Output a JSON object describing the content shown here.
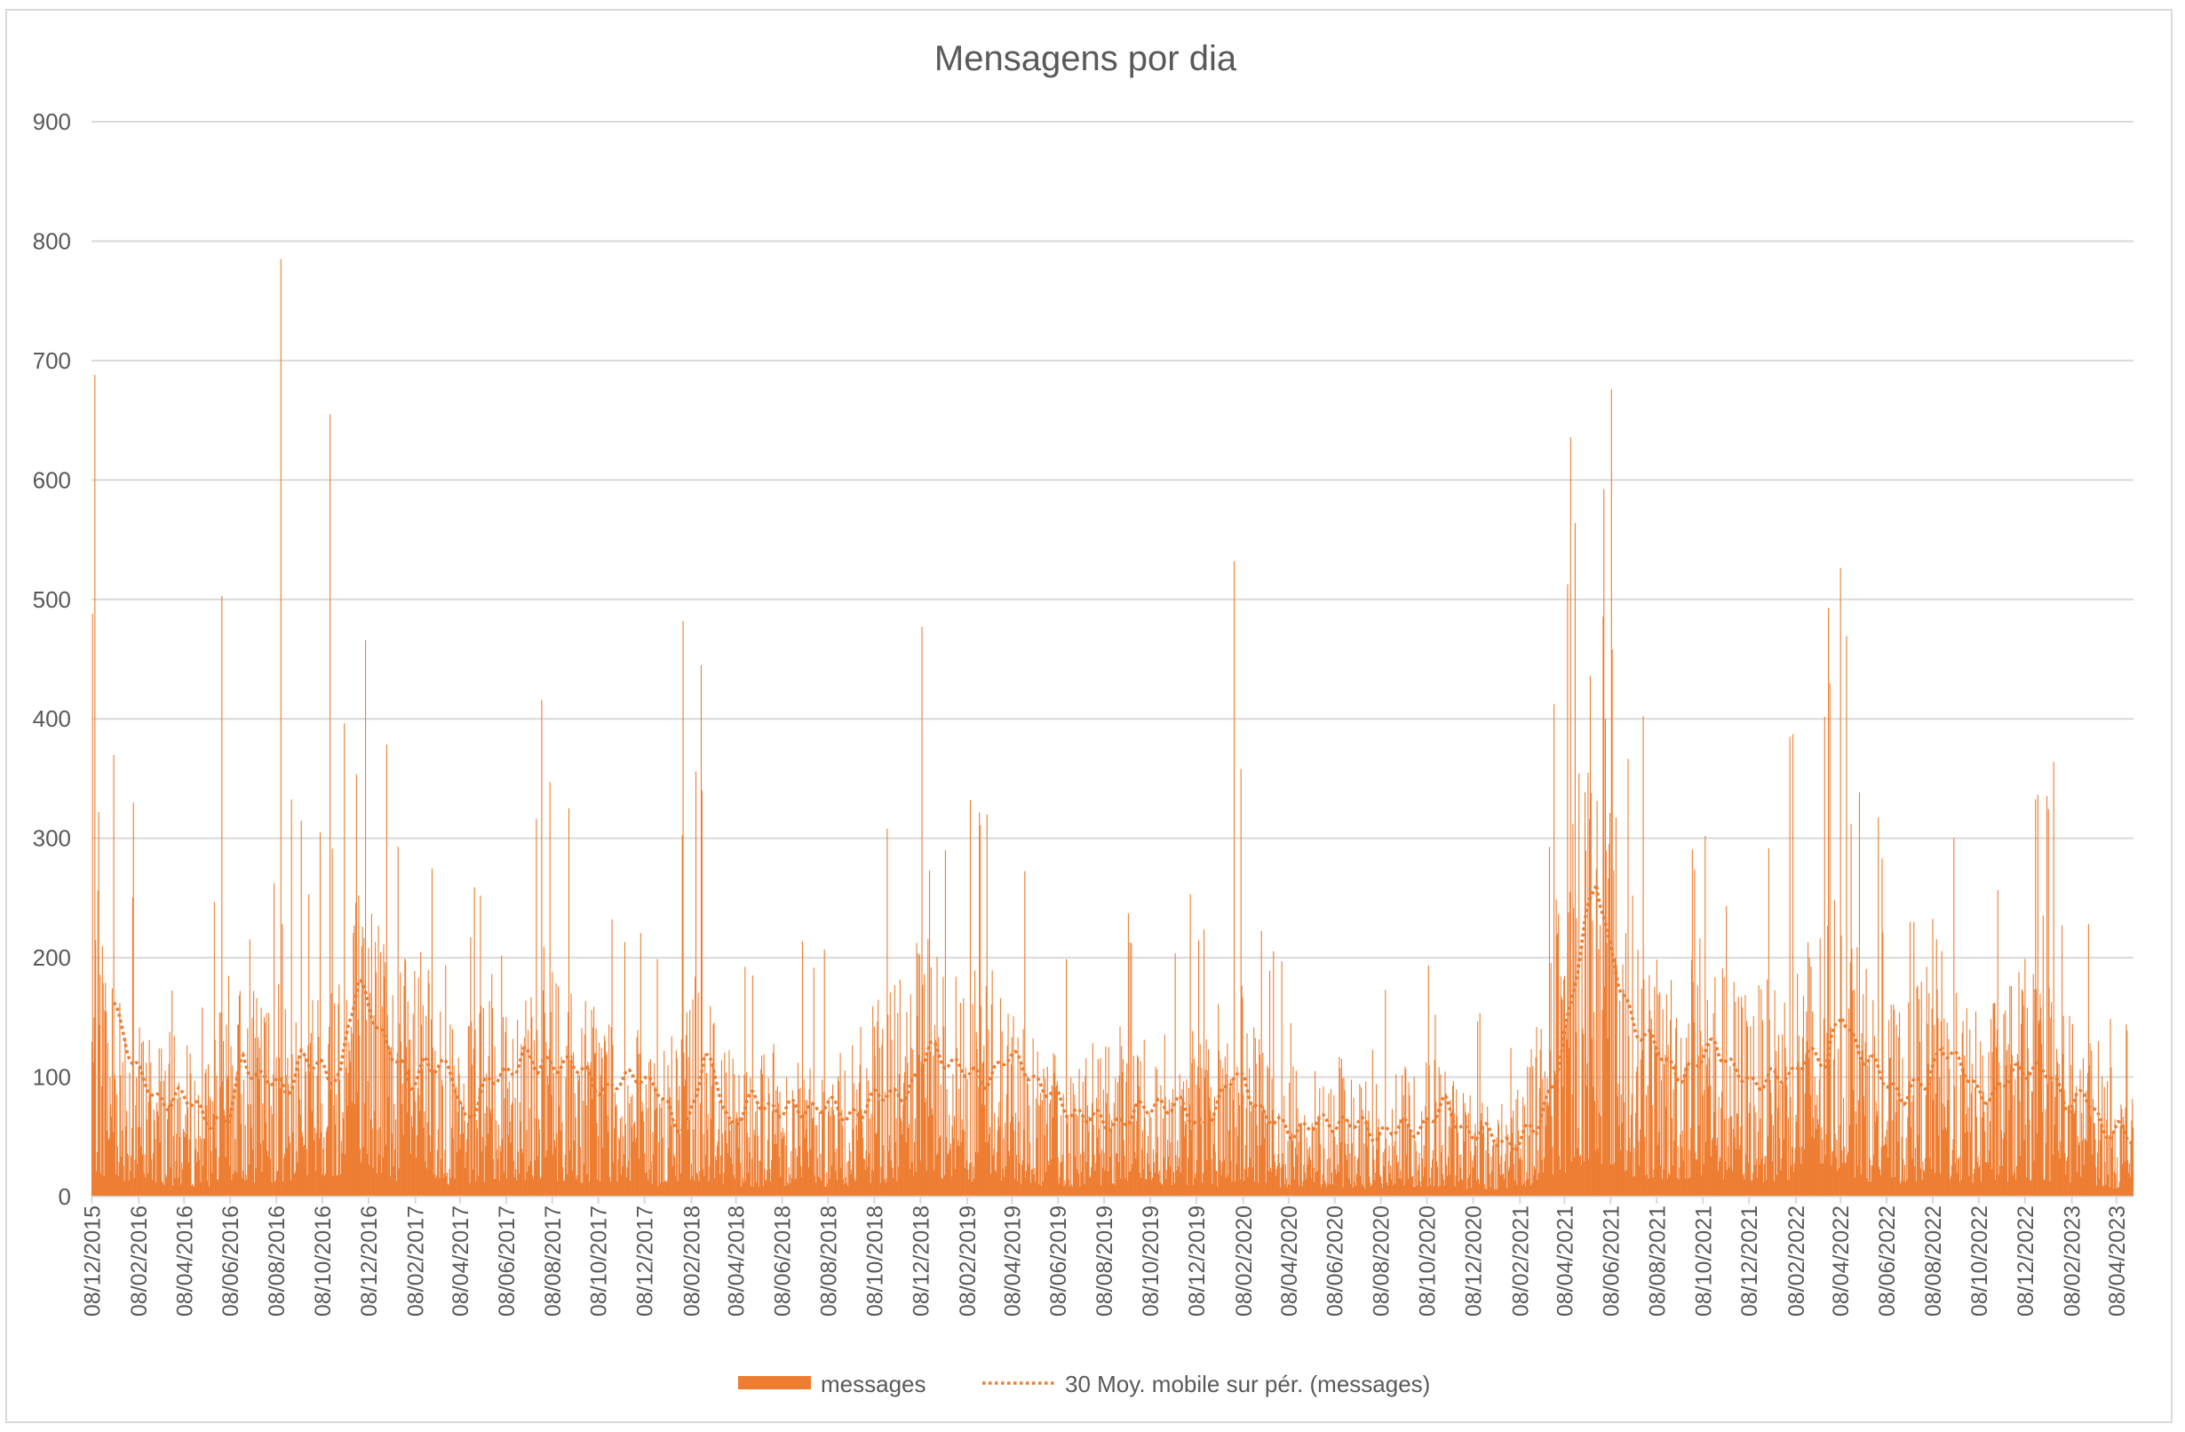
{
  "chart_data": {
    "type": "bar",
    "title": "Mensagens por dia",
    "xlabel": "",
    "ylabel": "",
    "ylim": [
      0,
      900
    ],
    "yticks": [
      0,
      100,
      200,
      300,
      400,
      500,
      600,
      700,
      800,
      900
    ],
    "grid": true,
    "legend_position": "bottom",
    "x_start": "2015-12-08",
    "x_end": "2023-04-30",
    "x_tick_labels": [
      "08/12/2015",
      "08/02/2016",
      "08/04/2016",
      "08/06/2016",
      "08/08/2016",
      "08/10/2016",
      "08/12/2016",
      "08/02/2017",
      "08/04/2017",
      "08/06/2017",
      "08/08/2017",
      "08/10/2017",
      "08/12/2017",
      "08/02/2018",
      "08/04/2018",
      "08/06/2018",
      "08/08/2018",
      "08/10/2018",
      "08/12/2018",
      "08/02/2019",
      "08/04/2019",
      "08/06/2019",
      "08/08/2019",
      "08/10/2019",
      "08/12/2019",
      "08/02/2020",
      "08/04/2020",
      "08/06/2020",
      "08/08/2020",
      "08/10/2020",
      "08/12/2020",
      "08/02/2021",
      "08/04/2021",
      "08/06/2021",
      "08/08/2021",
      "08/10/2021",
      "08/12/2021",
      "08/02/2022",
      "08/04/2022",
      "08/06/2022",
      "08/08/2022",
      "08/10/2022",
      "08/12/2022",
      "08/02/2023",
      "08/04/2023"
    ],
    "series": [
      {
        "name": "messages",
        "style": "bar",
        "color": "#ED7D31",
        "daily_level_by_period": {
          "dates": [
            "2015-12-08",
            "2016-01-08",
            "2016-02-08",
            "2016-03-08",
            "2016-04-08",
            "2016-05-08",
            "2016-06-08",
            "2016-07-08",
            "2016-08-08",
            "2016-09-08",
            "2016-10-08",
            "2016-11-08",
            "2016-12-08",
            "2017-01-08",
            "2017-02-08",
            "2017-03-08",
            "2017-04-08",
            "2017-05-08",
            "2017-06-08",
            "2017-07-08",
            "2017-08-08",
            "2017-09-08",
            "2017-10-08",
            "2017-11-08",
            "2017-12-08",
            "2018-01-08",
            "2018-02-08",
            "2018-03-08",
            "2018-04-08",
            "2018-05-08",
            "2018-06-08",
            "2018-07-08",
            "2018-08-08",
            "2018-09-08",
            "2018-10-08",
            "2018-11-08",
            "2018-12-08",
            "2019-01-08",
            "2019-02-08",
            "2019-03-08",
            "2019-04-08",
            "2019-05-08",
            "2019-06-08",
            "2019-07-08",
            "2019-08-08",
            "2019-09-08",
            "2019-10-08",
            "2019-11-08",
            "2019-12-08",
            "2020-01-08",
            "2020-02-08",
            "2020-03-08",
            "2020-04-08",
            "2020-05-08",
            "2020-06-08",
            "2020-07-08",
            "2020-08-08",
            "2020-09-08",
            "2020-10-08",
            "2020-11-08",
            "2020-12-08",
            "2021-01-08",
            "2021-02-08",
            "2021-03-08",
            "2021-04-08",
            "2021-05-08",
            "2021-06-08",
            "2021-07-08",
            "2021-08-08",
            "2021-09-08",
            "2021-10-08",
            "2021-11-08",
            "2021-12-08",
            "2022-01-08",
            "2022-02-08",
            "2022-03-08",
            "2022-04-08",
            "2022-05-08",
            "2022-06-08",
            "2022-07-08",
            "2022-08-08",
            "2022-09-08",
            "2022-10-08",
            "2022-11-08",
            "2022-12-08",
            "2023-01-08",
            "2023-02-08",
            "2023-03-08",
            "2023-04-08",
            "2023-04-30"
          ],
          "values": [
            150,
            120,
            85,
            80,
            72,
            65,
            105,
            95,
            100,
            105,
            100,
            150,
            160,
            110,
            120,
            95,
            70,
            95,
            115,
            115,
            115,
            95,
            100,
            95,
            70,
            70,
            110,
            100,
            70,
            70,
            75,
            70,
            65,
            70,
            90,
            100,
            120,
            120,
            100,
            115,
            95,
            80,
            65,
            70,
            75,
            80,
            85,
            75,
            80,
            70,
            100,
            65,
            60,
            60,
            70,
            55,
            55,
            60,
            70,
            60,
            50,
            45,
            60,
            95,
            160,
            240,
            200,
            140,
            110,
            110,
            130,
            105,
            100,
            100,
            120,
            130,
            160,
            110,
            90,
            90,
            130,
            95,
            85,
            100,
            110,
            105,
            85,
            80,
            55,
            45
          ]
        },
        "spikes": [
          {
            "date": "2015-12-09",
            "value": 488
          },
          {
            "date": "2015-12-12",
            "value": 688
          },
          {
            "date": "2016-01-06",
            "value": 370
          },
          {
            "date": "2016-02-01",
            "value": 330
          },
          {
            "date": "2016-05-28",
            "value": 503
          },
          {
            "date": "2016-08-14",
            "value": 785
          },
          {
            "date": "2016-10-18",
            "value": 655
          },
          {
            "date": "2016-12-04",
            "value": 466
          },
          {
            "date": "2017-07-25",
            "value": 416
          },
          {
            "date": "2018-01-28",
            "value": 482
          },
          {
            "date": "2018-02-21",
            "value": 445
          },
          {
            "date": "2018-02-22",
            "value": 340
          },
          {
            "date": "2018-12-10",
            "value": 477
          },
          {
            "date": "2019-01-10",
            "value": 290
          },
          {
            "date": "2019-02-12",
            "value": 332
          },
          {
            "date": "2019-03-06",
            "value": 320
          },
          {
            "date": "2020-01-27",
            "value": 532
          },
          {
            "date": "2020-02-05",
            "value": 358
          },
          {
            "date": "2021-04-16",
            "value": 636
          },
          {
            "date": "2021-04-22",
            "value": 564
          },
          {
            "date": "2021-05-12",
            "value": 436
          },
          {
            "date": "2021-06-01",
            "value": 400
          },
          {
            "date": "2021-06-09",
            "value": 676
          },
          {
            "date": "2021-06-10",
            "value": 458
          },
          {
            "date": "2022-01-31",
            "value": 385
          },
          {
            "date": "2022-03-23",
            "value": 493
          },
          {
            "date": "2023-01-15",
            "value": 364
          }
        ]
      },
      {
        "name": "30 Moy. mobile sur pér. (messages)",
        "style": "dotted-line",
        "color": "#ED7D31",
        "dates": [
          "2016-01-06",
          "2016-01-20",
          "2016-02-01",
          "2016-03-01",
          "2016-04-01",
          "2016-05-01",
          "2016-05-20",
          "2016-06-05",
          "2016-06-25",
          "2016-07-20",
          "2016-08-05",
          "2016-08-20",
          "2016-09-10",
          "2016-09-25",
          "2016-10-15",
          "2016-11-01",
          "2016-11-12",
          "2016-11-25",
          "2016-12-15",
          "2017-01-10",
          "2017-02-01",
          "2017-02-20",
          "2017-03-10",
          "2017-03-28",
          "2017-04-15",
          "2017-05-10",
          "2017-06-10",
          "2017-07-01",
          "2017-07-20",
          "2017-08-08",
          "2017-09-01",
          "2017-09-25",
          "2017-10-20",
          "2017-11-10",
          "2017-12-01",
          "2017-12-25",
          "2018-01-15",
          "2018-02-05",
          "2018-02-25",
          "2018-03-15",
          "2018-04-01",
          "2018-05-01",
          "2018-06-01",
          "2018-07-01",
          "2018-08-01",
          "2018-09-01",
          "2018-10-01",
          "2018-11-01",
          "2018-12-01",
          "2018-12-20",
          "2019-01-15",
          "2019-02-10",
          "2019-03-05",
          "2019-04-01",
          "2019-04-25",
          "2019-05-20",
          "2019-06-15",
          "2019-07-10",
          "2019-08-05",
          "2019-09-01",
          "2019-09-25",
          "2019-10-20",
          "2019-11-15",
          "2019-12-10",
          "2020-01-05",
          "2020-01-25",
          "2020-02-10",
          "2020-03-05",
          "2020-04-01",
          "2020-05-01",
          "2020-06-01",
          "2020-07-01",
          "2020-08-01",
          "2020-09-01",
          "2020-10-01",
          "2020-11-01",
          "2020-12-01",
          "2021-01-01",
          "2021-02-01",
          "2021-03-01",
          "2021-03-25",
          "2021-04-15",
          "2021-05-05",
          "2021-05-20",
          "2021-06-05",
          "2021-06-20",
          "2021-07-10",
          "2021-08-01",
          "2021-08-20",
          "2021-09-10",
          "2021-10-01",
          "2021-10-25",
          "2021-11-15",
          "2021-12-10",
          "2022-01-05",
          "2022-02-01",
          "2022-02-25",
          "2022-03-20",
          "2022-04-10",
          "2022-05-05",
          "2022-06-01",
          "2022-07-01",
          "2022-08-01",
          "2022-08-20",
          "2022-09-10",
          "2022-10-05",
          "2022-11-01",
          "2022-11-25",
          "2022-12-15",
          "2023-01-10",
          "2023-02-01",
          "2023-02-25",
          "2023-03-20",
          "2023-04-10",
          "2023-04-30"
        ],
        "values": [
          160,
          140,
          110,
          80,
          85,
          70,
          65,
          60,
          115,
          100,
          95,
          85,
          120,
          110,
          100,
          105,
          150,
          175,
          150,
          120,
          90,
          115,
          110,
          100,
          65,
          90,
          105,
          120,
          105,
          115,
          110,
          100,
          90,
          95,
          105,
          90,
          60,
          65,
          115,
          95,
          60,
          80,
          75,
          70,
          80,
          65,
          80,
          85,
          95,
          125,
          115,
          100,
          100,
          115,
          110,
          90,
          75,
          70,
          60,
          65,
          70,
          80,
          75,
          60,
          75,
          100,
          100,
          65,
          60,
          55,
          65,
          60,
          55,
          55,
          60,
          75,
          55,
          50,
          45,
          55,
          100,
          150,
          230,
          270,
          210,
          175,
          145,
          130,
          110,
          105,
          110,
          130,
          110,
          90,
          105,
          95,
          125,
          110,
          155,
          120,
          100,
          85,
          95,
          130,
          110,
          90,
          85,
          105,
          110,
          100,
          80,
          85,
          55,
          60,
          45
        ]
      }
    ]
  }
}
